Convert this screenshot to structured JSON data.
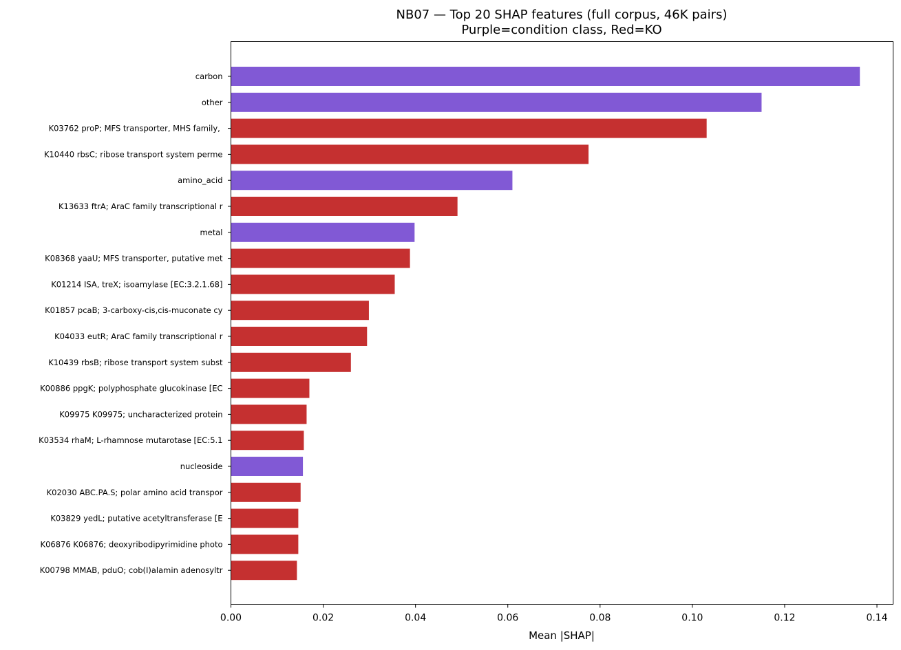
{
  "chart_data": {
    "type": "bar",
    "orientation": "horizontal",
    "title": "NB07 — Top 20 SHAP features (full corpus, 46K pairs)",
    "subtitle": "Purple=condition class, Red=KO",
    "xlabel": "Mean |SHAP|",
    "ylabel": "",
    "xlim": [
      0,
      0.1435
    ],
    "xticks": [
      0.0,
      0.02,
      0.04,
      0.06,
      0.08,
      0.1,
      0.12,
      0.14
    ],
    "xtick_labels": [
      "0.00",
      "0.02",
      "0.04",
      "0.06",
      "0.08",
      "0.10",
      "0.12",
      "0.14"
    ],
    "grid": false,
    "colors": {
      "condition": "#8159d5",
      "ko": "#c53030"
    },
    "categories": [
      "carbon",
      "other",
      "K03762 proP; MFS transporter, MHS family, ",
      "K10440 rbsC; ribose transport system perme",
      "amino_acid",
      "K13633 ftrA; AraC family transcriptional r",
      "metal",
      "K08368 yaaU; MFS transporter, putative met",
      "K01214 ISA, treX; isoamylase [EC:3.2.1.68]",
      "K01857 pcaB; 3-carboxy-cis,cis-muconate cy",
      "K04033 eutR; AraC family transcriptional r",
      "K10439 rbsB; ribose transport system subst",
      "K00886 ppgK; polyphosphate glucokinase [EC",
      "K09975 K09975; uncharacterized protein",
      "K03534 rhaM; L-rhamnose mutarotase [EC:5.1",
      "nucleoside",
      "K02030 ABC.PA.S; polar amino acid transpor",
      "K03829 yedL; putative acetyltransferase [E",
      "K06876 K06876; deoxyribodipyrimidine photo",
      "K00798 MMAB, pduO; cob(I)alamin adenosyltr"
    ],
    "values": [
      0.1363,
      0.115,
      0.1031,
      0.0775,
      0.061,
      0.0491,
      0.0398,
      0.0388,
      0.0355,
      0.0299,
      0.0295,
      0.026,
      0.017,
      0.0164,
      0.0158,
      0.0156,
      0.0151,
      0.0146,
      0.0146,
      0.0143
    ],
    "kinds": [
      "condition",
      "condition",
      "ko",
      "ko",
      "condition",
      "ko",
      "condition",
      "ko",
      "ko",
      "ko",
      "ko",
      "ko",
      "ko",
      "ko",
      "ko",
      "condition",
      "ko",
      "ko",
      "ko",
      "ko"
    ]
  }
}
